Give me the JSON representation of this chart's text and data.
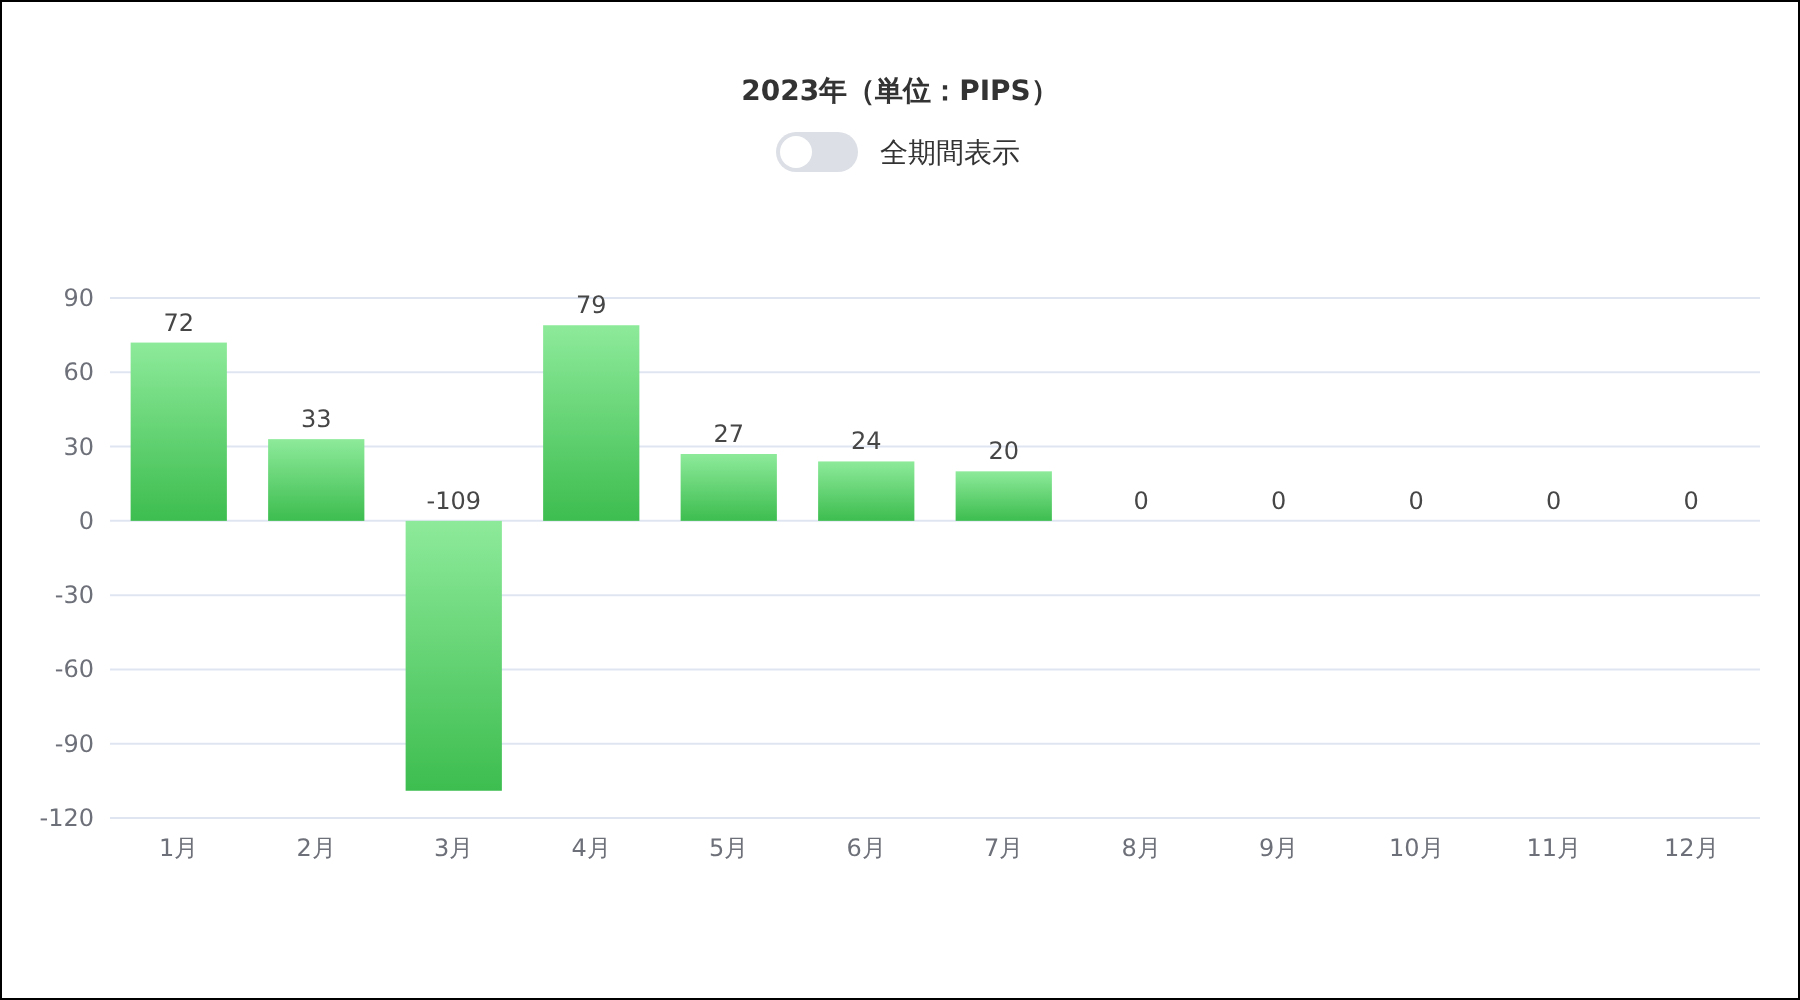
{
  "chart_data": {
    "type": "bar",
    "title": "2023年（単位：PIPS）",
    "annotations": [
      "全期間表示"
    ],
    "categories": [
      "1月",
      "2月",
      "3月",
      "4月",
      "5月",
      "6月",
      "7月",
      "8月",
      "9月",
      "10月",
      "11月",
      "12月"
    ],
    "values": [
      72,
      33,
      -109,
      79,
      27,
      24,
      20,
      0,
      0,
      0,
      0,
      0
    ],
    "color": "#3dbd4f",
    "ylim": [
      -120,
      90
    ],
    "yticks": [
      -120,
      -90,
      -60,
      -30,
      0,
      30,
      60,
      90
    ],
    "grid": "y",
    "data_labels": true
  }
}
